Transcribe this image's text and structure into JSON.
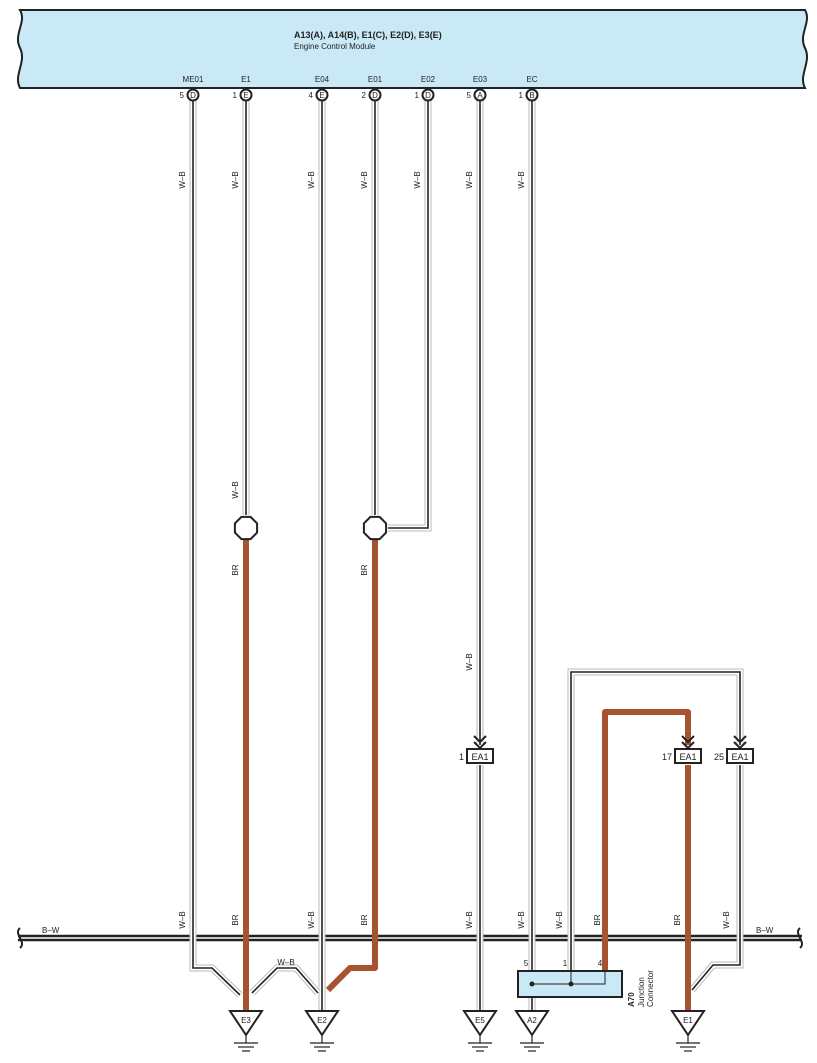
{
  "ecm": {
    "title": "A13(A), A14(B), E1(C), E2(D), E3(E)",
    "subtitle": "Engine Control Module",
    "fill_color": "#c9e9f7",
    "pins": [
      {
        "terminal": "ME01",
        "number": "5",
        "connector": "D"
      },
      {
        "terminal": "E1",
        "number": "1",
        "connector": "E"
      },
      {
        "terminal": "E04",
        "number": "4",
        "connector": "E"
      },
      {
        "terminal": "E01",
        "number": "2",
        "connector": "D"
      },
      {
        "terminal": "E02",
        "number": "1",
        "connector": "D"
      },
      {
        "terminal": "E03",
        "number": "5",
        "connector": "A"
      },
      {
        "terminal": "EC",
        "number": "1",
        "connector": "B"
      }
    ]
  },
  "wire_colors": {
    "wb": "W–B",
    "br": "BR",
    "bw": "B–W",
    "br_hex": "#a8532f"
  },
  "bus_label": "B–W",
  "ea1_connectors": [
    {
      "name": "EA1",
      "pin": "1"
    },
    {
      "name": "EA1",
      "pin": "17"
    },
    {
      "name": "EA1",
      "pin": "25"
    }
  ],
  "junction": {
    "code": "A70",
    "name": "Junction Connector",
    "pins": [
      "5",
      "1",
      "4"
    ],
    "fill_color": "#c9e9f7"
  },
  "grounds": [
    "E3",
    "E2",
    "E5",
    "A2",
    "E1"
  ]
}
